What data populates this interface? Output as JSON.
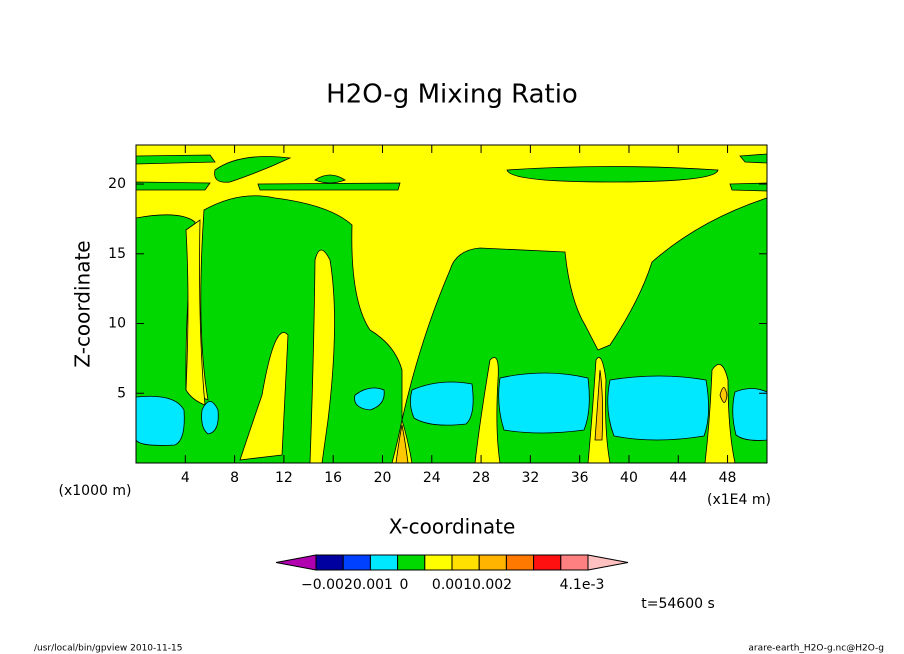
{
  "chart_data": {
    "type": "contour",
    "title": "H2O-g Mixing Ratio",
    "x_label": "X-coordinate",
    "y_label": "Z-coordinate",
    "x_unit": "(x1E4 m)",
    "y_unit": "(x1000 m)",
    "xlim": [
      0,
      51.2
    ],
    "ylim": [
      0,
      22.8
    ],
    "xticks": [
      4,
      8,
      12,
      16,
      20,
      24,
      28,
      32,
      36,
      40,
      44,
      48
    ],
    "yticks": [
      5,
      10,
      15,
      20
    ],
    "colorbar_colors": [
      "#b000b0",
      "#0000a0",
      "#0040ff",
      "#00e8ff",
      "#00d800",
      "#ffff00",
      "#ffe000",
      "#ffb400",
      "#ff7800",
      "#ff1010",
      "#ff8080",
      "#ffc0c0"
    ],
    "colorbar_labels": [
      "−0.0020.001",
      "0",
      "0.0010.002",
      "4.1e-3"
    ],
    "annotation": "t=54600 s",
    "footer_left": "/usr/local/bin/gpview  2010-11-15",
    "footer_right": "arare-earth_H2O-g.nc@H2O-g"
  }
}
